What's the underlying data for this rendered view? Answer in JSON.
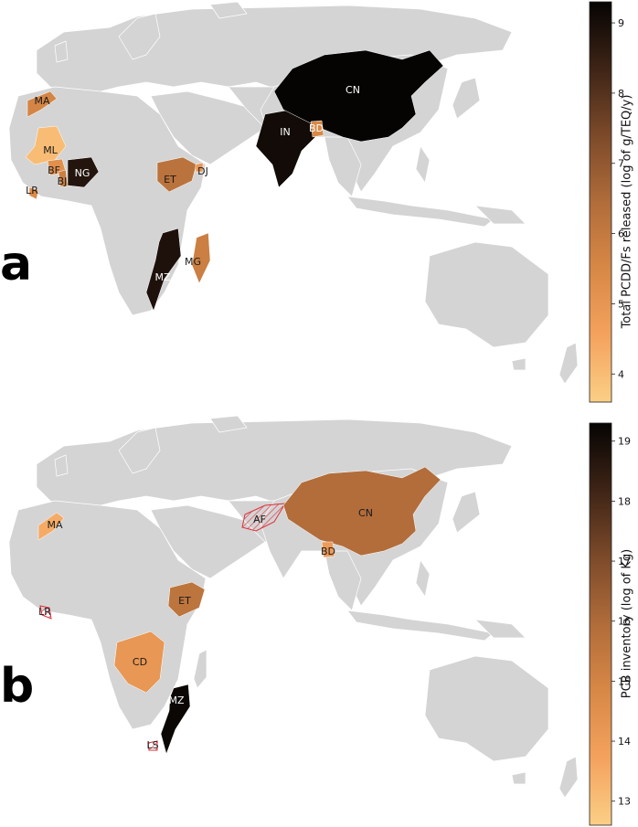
{
  "panels": [
    {
      "letter": "a",
      "colorbar": {
        "label": "Total PCDD/Fs released (log of g/TEQ/y)",
        "ticks": [
          "4",
          "5",
          "6",
          "7",
          "8",
          "9"
        ],
        "min": 3.6,
        "max": 9.3
      },
      "countries": [
        {
          "code": "MA",
          "value": 5.6
        },
        {
          "code": "ML",
          "value": 4.0
        },
        {
          "code": "BF",
          "value": 5.2
        },
        {
          "code": "BJ",
          "value": 5.8
        },
        {
          "code": "NG",
          "value": 8.8
        },
        {
          "code": "LR",
          "value": 5.4
        },
        {
          "code": "ET",
          "value": 6.2
        },
        {
          "code": "DJ",
          "value": 5.0
        },
        {
          "code": "IN",
          "value": 9.1
        },
        {
          "code": "CN",
          "value": 9.3
        },
        {
          "code": "BD",
          "value": 5.5
        },
        {
          "code": "MZ",
          "value": 8.9
        },
        {
          "code": "MG",
          "value": 5.8
        }
      ]
    },
    {
      "letter": "b",
      "colorbar": {
        "label": "PCB inventory (log of Kg)",
        "ticks": [
          "13",
          "14",
          "15",
          "16",
          "17",
          "18",
          "19"
        ],
        "min": 12.6,
        "max": 19.3
      },
      "countries": [
        {
          "code": "MA",
          "value": 13.5
        },
        {
          "code": "LR",
          "value": null,
          "hatched": true
        },
        {
          "code": "CD",
          "value": 14.2
        },
        {
          "code": "ET",
          "value": 15.6
        },
        {
          "code": "AF",
          "value": null,
          "hatched": true
        },
        {
          "code": "CN",
          "value": 15.9
        },
        {
          "code": "BD",
          "value": 14.0
        },
        {
          "code": "MZ",
          "value": 19.2
        },
        {
          "code": "LS",
          "value": null,
          "hatched": true
        }
      ]
    }
  ],
  "colors": {
    "land": "#d4d4d4",
    "border": "#ffffff",
    "hatch": "#e0303a",
    "ramp": [
      "#fbcf86",
      "#f4a25e",
      "#d88846",
      "#b06c3a",
      "#7c4a2a",
      "#3e2416",
      "#060403"
    ]
  }
}
